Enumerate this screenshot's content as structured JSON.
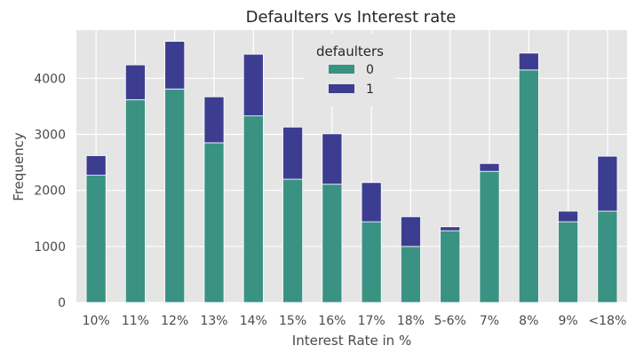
{
  "chart_data": {
    "type": "bar",
    "stacked": true,
    "title": "Defaulters vs Interest rate",
    "xlabel": "Interest Rate in %",
    "ylabel": "Frequency",
    "categories": [
      "10%",
      "11%",
      "12%",
      "13%",
      "14%",
      "15%",
      "16%",
      "17%",
      "18%",
      "5-6%",
      "7%",
      "8%",
      "9%",
      "<18%"
    ],
    "series": [
      {
        "name": "0",
        "color": "#3a9283",
        "values": [
          2270,
          3620,
          3810,
          2850,
          3330,
          2200,
          2110,
          1440,
          1000,
          1280,
          2340,
          4150,
          1440,
          1630
        ]
      },
      {
        "name": "1",
        "color": "#3c3d91",
        "values": [
          350,
          620,
          850,
          820,
          1100,
          930,
          900,
          700,
          530,
          70,
          140,
          300,
          190,
          980
        ]
      }
    ],
    "yticks": [
      0,
      1000,
      2000,
      3000,
      4000
    ],
    "ylim": [
      0,
      4860
    ],
    "grid": true,
    "legend": {
      "title": "defaulters",
      "placement": "top-center"
    }
  }
}
